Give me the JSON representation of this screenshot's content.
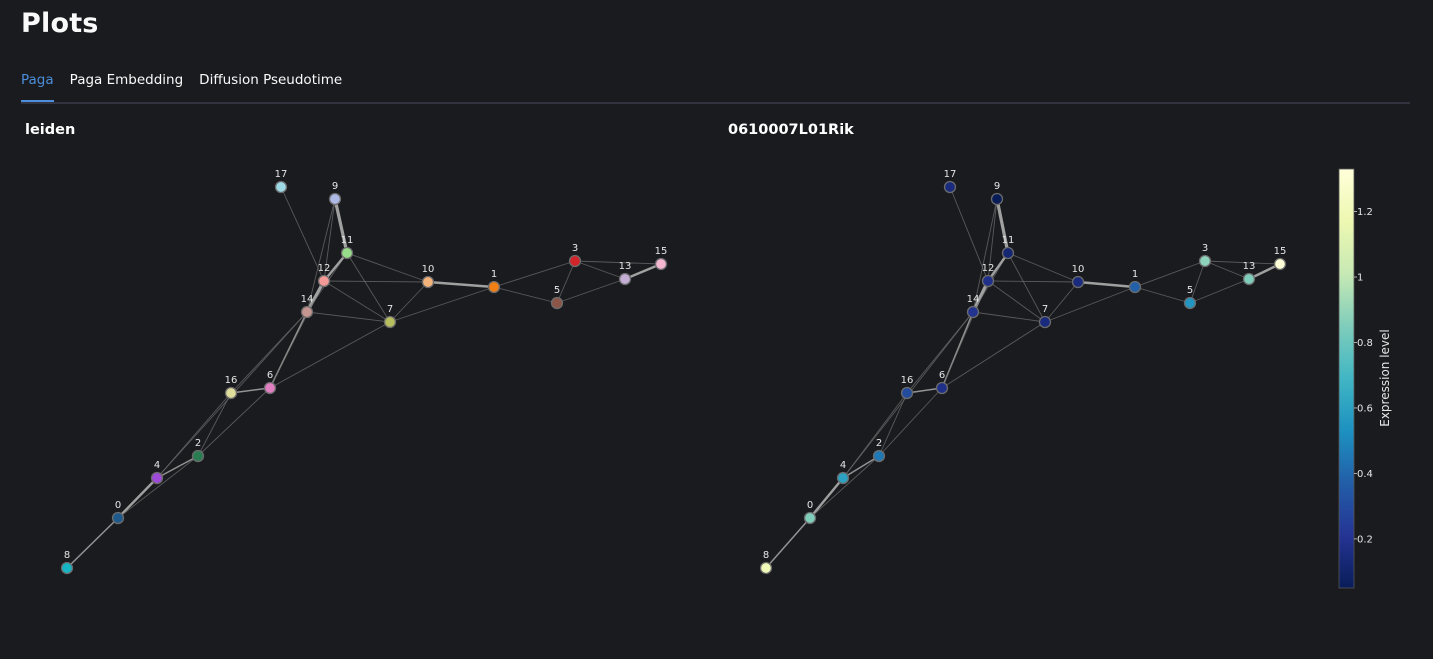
{
  "page": {
    "title": "Plots"
  },
  "tabs": [
    {
      "label": "Paga",
      "active": true
    },
    {
      "label": "Paga Embedding",
      "active": false
    },
    {
      "label": "Diffusion Pseudotime",
      "active": false
    }
  ],
  "plots": [
    {
      "title": "leiden",
      "colors": {
        "0": "#1f5a8b",
        "1": "#f07f16",
        "2": "#2a7d52",
        "3": "#d0262b",
        "4": "#a04ad8",
        "5": "#8b5648",
        "6": "#e07fc1",
        "7": "#b7be5e",
        "8": "#17b5c4",
        "9": "#aeb8e4",
        "10": "#f5b37c",
        "11": "#98dd8a",
        "12": "#f39a97",
        "13": "#c4aed4",
        "14": "#c59690",
        "15": "#f5b6d0",
        "16": "#dedd9b",
        "17": "#9ed9e6"
      }
    },
    {
      "title": "0610007L01Rik",
      "expression": {
        "0": 0.85,
        "1": 0.38,
        "2": 0.45,
        "3": 0.88,
        "4": 0.6,
        "5": 0.55,
        "6": 0.18,
        "7": 0.15,
        "8": 1.2,
        "9": 0.05,
        "10": 0.15,
        "11": 0.12,
        "12": 0.18,
        "13": 0.85,
        "14": 0.2,
        "15": 1.32,
        "16": 0.3,
        "17": 0.15
      },
      "colorbar": {
        "title": "Expression level",
        "min": 0.05,
        "max": 1.33,
        "ticks": [
          0.2,
          0.4,
          0.6,
          0.8,
          1,
          1.2
        ],
        "tick_labels": [
          "0.2",
          "0.4",
          "0.6",
          "0.8",
          "1",
          "1.2"
        ]
      }
    }
  ],
  "graph": {
    "node_ids": [
      "0",
      "1",
      "2",
      "3",
      "4",
      "5",
      "6",
      "7",
      "8",
      "9",
      "10",
      "11",
      "12",
      "13",
      "14",
      "15",
      "16",
      "17"
    ],
    "edges": [
      [
        "8",
        "0",
        2
      ],
      [
        "0",
        "4",
        3
      ],
      [
        "0",
        "2",
        1
      ],
      [
        "4",
        "2",
        2
      ],
      [
        "4",
        "16",
        1
      ],
      [
        "16",
        "2",
        1
      ],
      [
        "16",
        "6",
        2
      ],
      [
        "2",
        "6",
        1
      ],
      [
        "16",
        "14",
        1
      ],
      [
        "4",
        "14",
        1
      ],
      [
        "6",
        "14",
        2
      ],
      [
        "6",
        "12",
        1
      ],
      [
        "6",
        "7",
        1
      ],
      [
        "14",
        "12",
        4
      ],
      [
        "14",
        "11",
        1
      ],
      [
        "14",
        "7",
        1
      ],
      [
        "12",
        "11",
        3
      ],
      [
        "12",
        "9",
        1
      ],
      [
        "11",
        "9",
        4
      ],
      [
        "14",
        "9",
        1
      ],
      [
        "17",
        "12",
        1
      ],
      [
        "12",
        "10",
        1
      ],
      [
        "12",
        "7",
        1
      ],
      [
        "11",
        "10",
        1
      ],
      [
        "11",
        "7",
        1
      ],
      [
        "10",
        "7",
        1
      ],
      [
        "10",
        "1",
        3
      ],
      [
        "7",
        "1",
        1
      ],
      [
        "1",
        "3",
        1
      ],
      [
        "1",
        "5",
        1
      ],
      [
        "3",
        "5",
        1
      ],
      [
        "3",
        "13",
        1
      ],
      [
        "5",
        "13",
        1
      ],
      [
        "13",
        "15",
        3
      ],
      [
        "3",
        "15",
        1
      ]
    ]
  }
}
